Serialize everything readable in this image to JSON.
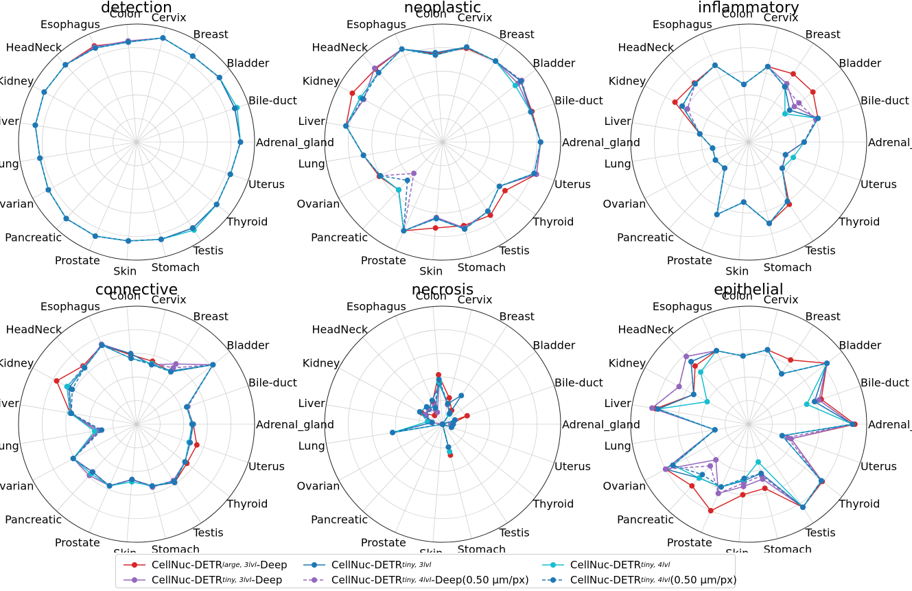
{
  "chart_data": {
    "type": "radar",
    "axis_labels": [
      "Adrenal_gland",
      "Bile-duct",
      "Bladder",
      "Breast",
      "Cervix",
      "Colon",
      "Esophagus",
      "HeadNeck",
      "Kidney",
      "Liver",
      "Lung",
      "Ovarian",
      "Pancreatic",
      "Prostate",
      "Skin",
      "Stomach",
      "Testis",
      "Thyroid",
      "Uterus"
    ],
    "series_names": [
      "CellNuc-DETR large,3lvl-Deep",
      "CellNuc-DETR tiny,3lvl-Deep",
      "CellNuc-DETR tiny,3lvl",
      "CellNuc-DETR tiny,4lvl-Deep(0.50 µm/px)",
      "CellNuc-DETR tiny,4lvl",
      "CellNuc-DETR tiny,4lvl(0.50 µm/px)"
    ],
    "colors": [
      "#d62728",
      "#9467bd",
      "#1f77b4",
      "#9467bd",
      "#17becf",
      "#1f77b4"
    ],
    "dashed": [
      false,
      false,
      false,
      true,
      false,
      true
    ],
    "rlim": [
      0,
      1
    ],
    "charts": [
      {
        "title": "detection",
        "series": [
          [
            0.88,
            0.88,
            0.89,
            0.87,
            0.91,
            0.85,
            0.89,
            0.89,
            0.89,
            0.87,
            0.83,
            0.85,
            0.88,
            0.87,
            0.84,
            0.85,
            0.87,
            0.86,
            0.84
          ],
          [
            0.88,
            0.88,
            0.89,
            0.87,
            0.91,
            0.86,
            0.88,
            0.89,
            0.89,
            0.87,
            0.83,
            0.85,
            0.88,
            0.87,
            0.84,
            0.85,
            0.87,
            0.86,
            0.84
          ],
          [
            0.88,
            0.88,
            0.89,
            0.87,
            0.91,
            0.85,
            0.87,
            0.89,
            0.89,
            0.87,
            0.83,
            0.85,
            0.88,
            0.87,
            0.84,
            0.85,
            0.87,
            0.86,
            0.84
          ],
          [
            0.88,
            0.88,
            0.89,
            0.87,
            0.91,
            0.85,
            0.87,
            0.89,
            0.89,
            0.87,
            0.83,
            0.85,
            0.88,
            0.87,
            0.84,
            0.85,
            0.87,
            0.86,
            0.84
          ],
          [
            0.88,
            0.9,
            0.89,
            0.87,
            0.91,
            0.85,
            0.87,
            0.89,
            0.89,
            0.87,
            0.83,
            0.85,
            0.88,
            0.87,
            0.84,
            0.85,
            0.89,
            0.86,
            0.84
          ],
          [
            0.88,
            0.88,
            0.89,
            0.87,
            0.91,
            0.85,
            0.87,
            0.89,
            0.89,
            0.87,
            0.83,
            0.85,
            0.88,
            0.87,
            0.84,
            0.85,
            0.87,
            0.86,
            0.84
          ]
        ]
      },
      {
        "title": "neoplastic",
        "series": [
          [
            0.83,
            0.8,
            0.84,
            0.82,
            0.82,
            0.75,
            0.86,
            0.84,
            0.87,
            0.83,
            0.68,
            0.61,
            0.55,
            0.82,
            0.73,
            0.73,
            0.74,
            0.67,
            0.84
          ],
          [
            0.83,
            0.79,
            0.81,
            0.82,
            0.83,
            0.76,
            0.86,
            0.85,
            0.76,
            0.83,
            0.68,
            0.6,
            0.55,
            0.82,
            0.64,
            0.75,
            0.7,
            0.61,
            0.84
          ],
          [
            0.83,
            0.79,
            0.84,
            0.82,
            0.83,
            0.76,
            0.86,
            0.8,
            0.79,
            0.83,
            0.68,
            0.6,
            0.55,
            0.82,
            0.65,
            0.76,
            0.7,
            0.61,
            0.82
          ],
          [
            0.83,
            0.79,
            0.85,
            0.82,
            0.83,
            0.74,
            0.86,
            0.8,
            0.79,
            0.83,
            0.68,
            0.6,
            0.36,
            0.82,
            0.65,
            0.76,
            0.7,
            0.61,
            0.82
          ],
          [
            0.83,
            0.79,
            0.78,
            0.82,
            0.83,
            0.74,
            0.86,
            0.8,
            0.79,
            0.83,
            0.68,
            0.6,
            0.55,
            0.82,
            0.65,
            0.76,
            0.7,
            0.61,
            0.82
          ],
          [
            0.83,
            0.79,
            0.84,
            0.82,
            0.83,
            0.74,
            0.86,
            0.8,
            0.77,
            0.83,
            0.68,
            0.6,
            0.44,
            0.82,
            0.65,
            0.76,
            0.7,
            0.61,
            0.82
          ]
        ]
      },
      {
        "title": "inflammatory",
        "series": [
          [
            0.47,
            0.62,
            0.69,
            0.69,
            0.66,
            0.49,
            0.71,
            0.68,
            0.71,
            0.42,
            0.31,
            0.32,
            0.3,
            0.67,
            0.51,
            0.71,
            0.63,
            0.36,
            0.33
          ],
          [
            0.47,
            0.62,
            0.49,
            0.59,
            0.66,
            0.49,
            0.71,
            0.67,
            0.64,
            0.42,
            0.31,
            0.32,
            0.3,
            0.67,
            0.51,
            0.71,
            0.6,
            0.36,
            0.33
          ],
          [
            0.47,
            0.62,
            0.44,
            0.56,
            0.66,
            0.49,
            0.71,
            0.67,
            0.64,
            0.42,
            0.31,
            0.32,
            0.3,
            0.67,
            0.51,
            0.71,
            0.6,
            0.36,
            0.33
          ],
          [
            0.47,
            0.6,
            0.54,
            0.56,
            0.66,
            0.49,
            0.71,
            0.67,
            0.59,
            0.42,
            0.31,
            0.32,
            0.3,
            0.67,
            0.51,
            0.71,
            0.6,
            0.36,
            0.33
          ],
          [
            0.47,
            0.62,
            0.39,
            0.56,
            0.66,
            0.49,
            0.71,
            0.67,
            0.64,
            0.42,
            0.31,
            0.32,
            0.3,
            0.67,
            0.51,
            0.71,
            0.6,
            0.36,
            0.4
          ],
          [
            0.47,
            0.62,
            0.44,
            0.56,
            0.66,
            0.49,
            0.71,
            0.67,
            0.64,
            0.42,
            0.31,
            0.32,
            0.3,
            0.67,
            0.51,
            0.71,
            0.6,
            0.36,
            0.33
          ]
        ]
      },
      {
        "title": "connective",
        "series": [
          [
            0.48,
            0.45,
            0.82,
            0.53,
            0.55,
            0.59,
            0.73,
            0.67,
            0.77,
            0.57,
            0.34,
            0.61,
            0.55,
            0.57,
            0.47,
            0.54,
            0.59,
            0.54,
            0.54
          ],
          [
            0.47,
            0.45,
            0.82,
            0.61,
            0.52,
            0.6,
            0.74,
            0.65,
            0.67,
            0.57,
            0.34,
            0.61,
            0.59,
            0.57,
            0.47,
            0.55,
            0.57,
            0.52,
            0.48
          ],
          [
            0.48,
            0.45,
            0.82,
            0.54,
            0.52,
            0.6,
            0.73,
            0.65,
            0.65,
            0.56,
            0.32,
            0.61,
            0.55,
            0.57,
            0.47,
            0.54,
            0.59,
            0.52,
            0.48
          ],
          [
            0.47,
            0.46,
            0.82,
            0.57,
            0.53,
            0.56,
            0.73,
            0.66,
            0.67,
            0.56,
            0.32,
            0.61,
            0.55,
            0.57,
            0.47,
            0.54,
            0.58,
            0.52,
            0.48
          ],
          [
            0.47,
            0.45,
            0.82,
            0.53,
            0.53,
            0.56,
            0.73,
            0.65,
            0.67,
            0.57,
            0.36,
            0.61,
            0.57,
            0.57,
            0.49,
            0.54,
            0.58,
            0.52,
            0.47
          ],
          [
            0.47,
            0.45,
            0.82,
            0.53,
            0.52,
            0.56,
            0.73,
            0.65,
            0.62,
            0.56,
            0.3,
            0.61,
            0.55,
            0.57,
            0.47,
            0.54,
            0.58,
            0.52,
            0.48
          ]
        ]
      },
      {
        "title": "necrosis",
        "series": [
          [
            0.07,
            0.22,
            0.0,
            0.14,
            0.23,
            0.42,
            0.21,
            0.1,
            0.2,
            0.1,
            0.0,
            0.0,
            0.0,
            0.0,
            0.0,
            0.27,
            0.0,
            0.0,
            0.08
          ],
          [
            0.07,
            0.11,
            0.0,
            0.11,
            0.17,
            0.36,
            0.11,
            0.18,
            0.17,
            0.1,
            0.0,
            0.0,
            0.0,
            0.0,
            0.0,
            0.24,
            0.0,
            0.0,
            0.08
          ],
          [
            0.09,
            0.11,
            0.0,
            0.29,
            0.18,
            0.34,
            0.22,
            0.17,
            0.16,
            0.09,
            0.43,
            0.0,
            0.0,
            0.0,
            0.0,
            0.2,
            0.0,
            0.0,
            0.08
          ],
          [
            0.09,
            0.11,
            0.0,
            0.11,
            0.18,
            0.38,
            0.17,
            0.18,
            0.17,
            0.09,
            0.43,
            0.0,
            0.0,
            0.0,
            0.0,
            0.2,
            0.0,
            0.0,
            0.08
          ],
          [
            0.09,
            0.11,
            0.0,
            0.1,
            0.18,
            0.36,
            0.15,
            0.2,
            0.22,
            0.13,
            0.43,
            0.0,
            0.0,
            0.0,
            0.0,
            0.24,
            0.0,
            0.0,
            0.08
          ],
          [
            0.09,
            0.11,
            0.0,
            0.11,
            0.18,
            0.38,
            0.15,
            0.2,
            0.22,
            0.09,
            0.43,
            0.0,
            0.0,
            0.0,
            0.0,
            0.2,
            0.0,
            0.0,
            0.08
          ]
        ]
      },
      {
        "title": "epithelial",
        "series": [
          [
            0.9,
            0.65,
            0.84,
            0.65,
            0.65,
            0.58,
            0.68,
            0.67,
            0.53,
            0.8,
            0.29,
            0.8,
            0.71,
            0.8,
            0.6,
            0.56,
            0.84,
            0.79,
            0.38
          ],
          [
            0.88,
            0.63,
            0.84,
            0.51,
            0.65,
            0.58,
            0.68,
            0.78,
            0.67,
            0.83,
            0.29,
            0.8,
            0.41,
            0.64,
            0.53,
            0.48,
            0.84,
            0.78,
            0.38
          ],
          [
            0.88,
            0.59,
            0.84,
            0.51,
            0.65,
            0.58,
            0.68,
            0.72,
            0.53,
            0.78,
            0.29,
            0.8,
            0.62,
            0.58,
            0.48,
            0.43,
            0.84,
            0.78,
            0.3
          ],
          [
            0.88,
            0.63,
            0.84,
            0.51,
            0.65,
            0.58,
            0.68,
            0.78,
            0.67,
            0.83,
            0.29,
            0.8,
            0.48,
            0.64,
            0.5,
            0.45,
            0.84,
            0.78,
            0.35
          ],
          [
            0.88,
            0.52,
            0.84,
            0.51,
            0.65,
            0.58,
            0.68,
            0.6,
            0.4,
            0.78,
            0.29,
            0.73,
            0.62,
            0.58,
            0.47,
            0.33,
            0.84,
            0.78,
            0.3
          ],
          [
            0.88,
            0.59,
            0.84,
            0.51,
            0.65,
            0.58,
            0.68,
            0.72,
            0.53,
            0.78,
            0.29,
            0.73,
            0.58,
            0.58,
            0.46,
            0.43,
            0.84,
            0.78,
            0.3
          ]
        ]
      }
    ]
  },
  "legend": {
    "items": [
      {
        "base": "CellNuc-DETR",
        "sub": "large, 3lvl",
        "suffix": "-Deep"
      },
      {
        "base": "CellNuc-DETR",
        "sub": "tiny, 3lvl",
        "suffix": "-Deep"
      },
      {
        "base": "CellNuc-DETR",
        "sub": "tiny, 3lvl",
        "suffix": ""
      },
      {
        "base": "CellNuc-DETR",
        "sub": "tiny, 4lvl",
        "suffix": "-Deep(0.50 μm/px)"
      },
      {
        "base": "CellNuc-DETR",
        "sub": "tiny, 4lvl",
        "suffix": ""
      },
      {
        "base": "CellNuc-DETR",
        "sub": "tiny, 4lvl",
        "suffix": "(0.50 μm/px)"
      }
    ]
  }
}
